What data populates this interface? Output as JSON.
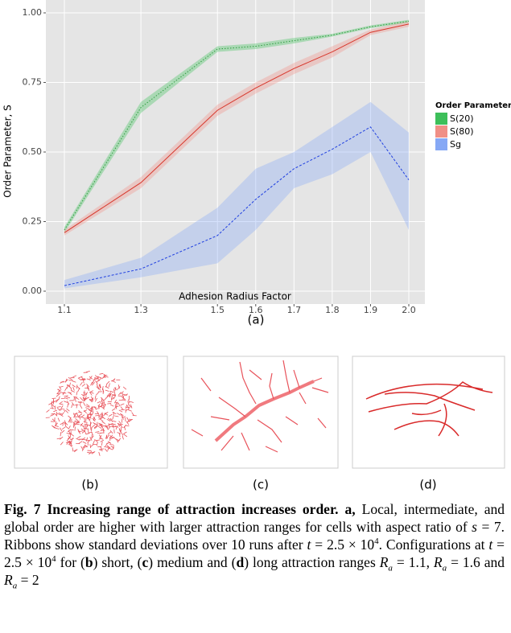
{
  "chart_data": {
    "type": "ribbon-line",
    "x_label": "Adhesion Radius Factor",
    "y_label": "Order Parameter, S",
    "legend_title": "Order Parameter",
    "legend": "right",
    "x": [
      1.1,
      1.3,
      1.5,
      1.6,
      1.7,
      1.8,
      1.9,
      2.0
    ],
    "series": [
      {
        "name": "S(20)",
        "color": "#2e9e3e",
        "fill": "#3dbf5a",
        "linestyle": "dotted",
        "values": [
          0.22,
          0.66,
          0.87,
          0.88,
          0.9,
          0.92,
          0.95,
          0.97
        ],
        "lower": [
          0.21,
          0.64,
          0.86,
          0.87,
          0.89,
          0.915,
          0.945,
          0.965
        ],
        "upper": [
          0.23,
          0.68,
          0.88,
          0.89,
          0.91,
          0.925,
          0.955,
          0.975
        ]
      },
      {
        "name": "S(80)",
        "color": "#d7372c",
        "fill": "#f08f86",
        "linestyle": "solid",
        "values": [
          0.21,
          0.39,
          0.65,
          0.73,
          0.8,
          0.86,
          0.93,
          0.96
        ],
        "lower": [
          0.2,
          0.37,
          0.63,
          0.71,
          0.78,
          0.84,
          0.92,
          0.95
        ],
        "upper": [
          0.22,
          0.41,
          0.67,
          0.75,
          0.82,
          0.88,
          0.94,
          0.97
        ]
      },
      {
        "name": "Sg",
        "color": "#2040e0",
        "fill": "#86a8f5",
        "linestyle": "dashed",
        "values": [
          0.02,
          0.08,
          0.2,
          0.33,
          0.44,
          0.51,
          0.59,
          0.4
        ],
        "lower": [
          0.01,
          0.05,
          0.1,
          0.22,
          0.37,
          0.42,
          0.5,
          0.22
        ],
        "upper": [
          0.04,
          0.12,
          0.3,
          0.44,
          0.5,
          0.59,
          0.68,
          0.57
        ]
      }
    ],
    "xlim": [
      1.1,
      2.0
    ],
    "ylim": [
      0,
      1
    ],
    "xticks": [
      1.1,
      1.3,
      1.5,
      1.6,
      1.7,
      1.8,
      1.9,
      {
        "value": 2.0,
        "label": "2.0"
      }
    ],
    "yticks": [
      {
        "value": 0,
        "label": "0.00"
      },
      {
        "value": 0.25,
        "label": "0.25"
      },
      {
        "value": 0.5,
        "label": "0.50"
      },
      {
        "value": 0.75,
        "label": "0.75"
      },
      {
        "value": 1,
        "label": "1.00"
      }
    ],
    "grid": true
  },
  "figure_label": "(a)",
  "panels": [
    "(b)",
    "(c)",
    "(d)"
  ],
  "caption": {
    "segments": [
      {
        "text": "Fig. 7 Increasing range of attraction increases order. a,",
        "style": "bold"
      },
      {
        "text": " Local, intermediate, and global order are higher with larger attraction ranges for cells with aspect ratio of ",
        "style": "normal"
      },
      {
        "text": "s",
        "style": "italic"
      },
      {
        "text": " = 7. Ribbons show standard deviations over 10 runs after ",
        "style": "normal"
      },
      {
        "text": "t",
        "style": "italic"
      },
      {
        "text": " = 2.5 × 10",
        "style": "normal"
      },
      {
        "text": "4",
        "style": "sup"
      },
      {
        "text": ". Configurations at ",
        "style": "normal"
      },
      {
        "text": "t",
        "style": "italic"
      },
      {
        "text": " = 2.5 × 10",
        "style": "normal"
      },
      {
        "text": "4",
        "style": "sup"
      },
      {
        "text": " for (",
        "style": "normal"
      },
      {
        "text": "b",
        "style": "bold"
      },
      {
        "text": ") short, (",
        "style": "normal"
      },
      {
        "text": "c",
        "style": "bold"
      },
      {
        "text": ") medium and (",
        "style": "normal"
      },
      {
        "text": "d",
        "style": "bold"
      },
      {
        "text": ") long attraction ranges ",
        "style": "normal"
      },
      {
        "text": "R",
        "style": "italic"
      },
      {
        "text": "a",
        "style": "sub"
      },
      {
        "text": " = 1.1, ",
        "style": "normal"
      },
      {
        "text": "R",
        "style": "italic"
      },
      {
        "text": "a",
        "style": "sub"
      },
      {
        "text": " = 1.6 and ",
        "style": "normal"
      },
      {
        "text": "R",
        "style": "italic"
      },
      {
        "text": "a",
        "style": "sub"
      },
      {
        "text": " = 2",
        "style": "normal"
      }
    ]
  }
}
